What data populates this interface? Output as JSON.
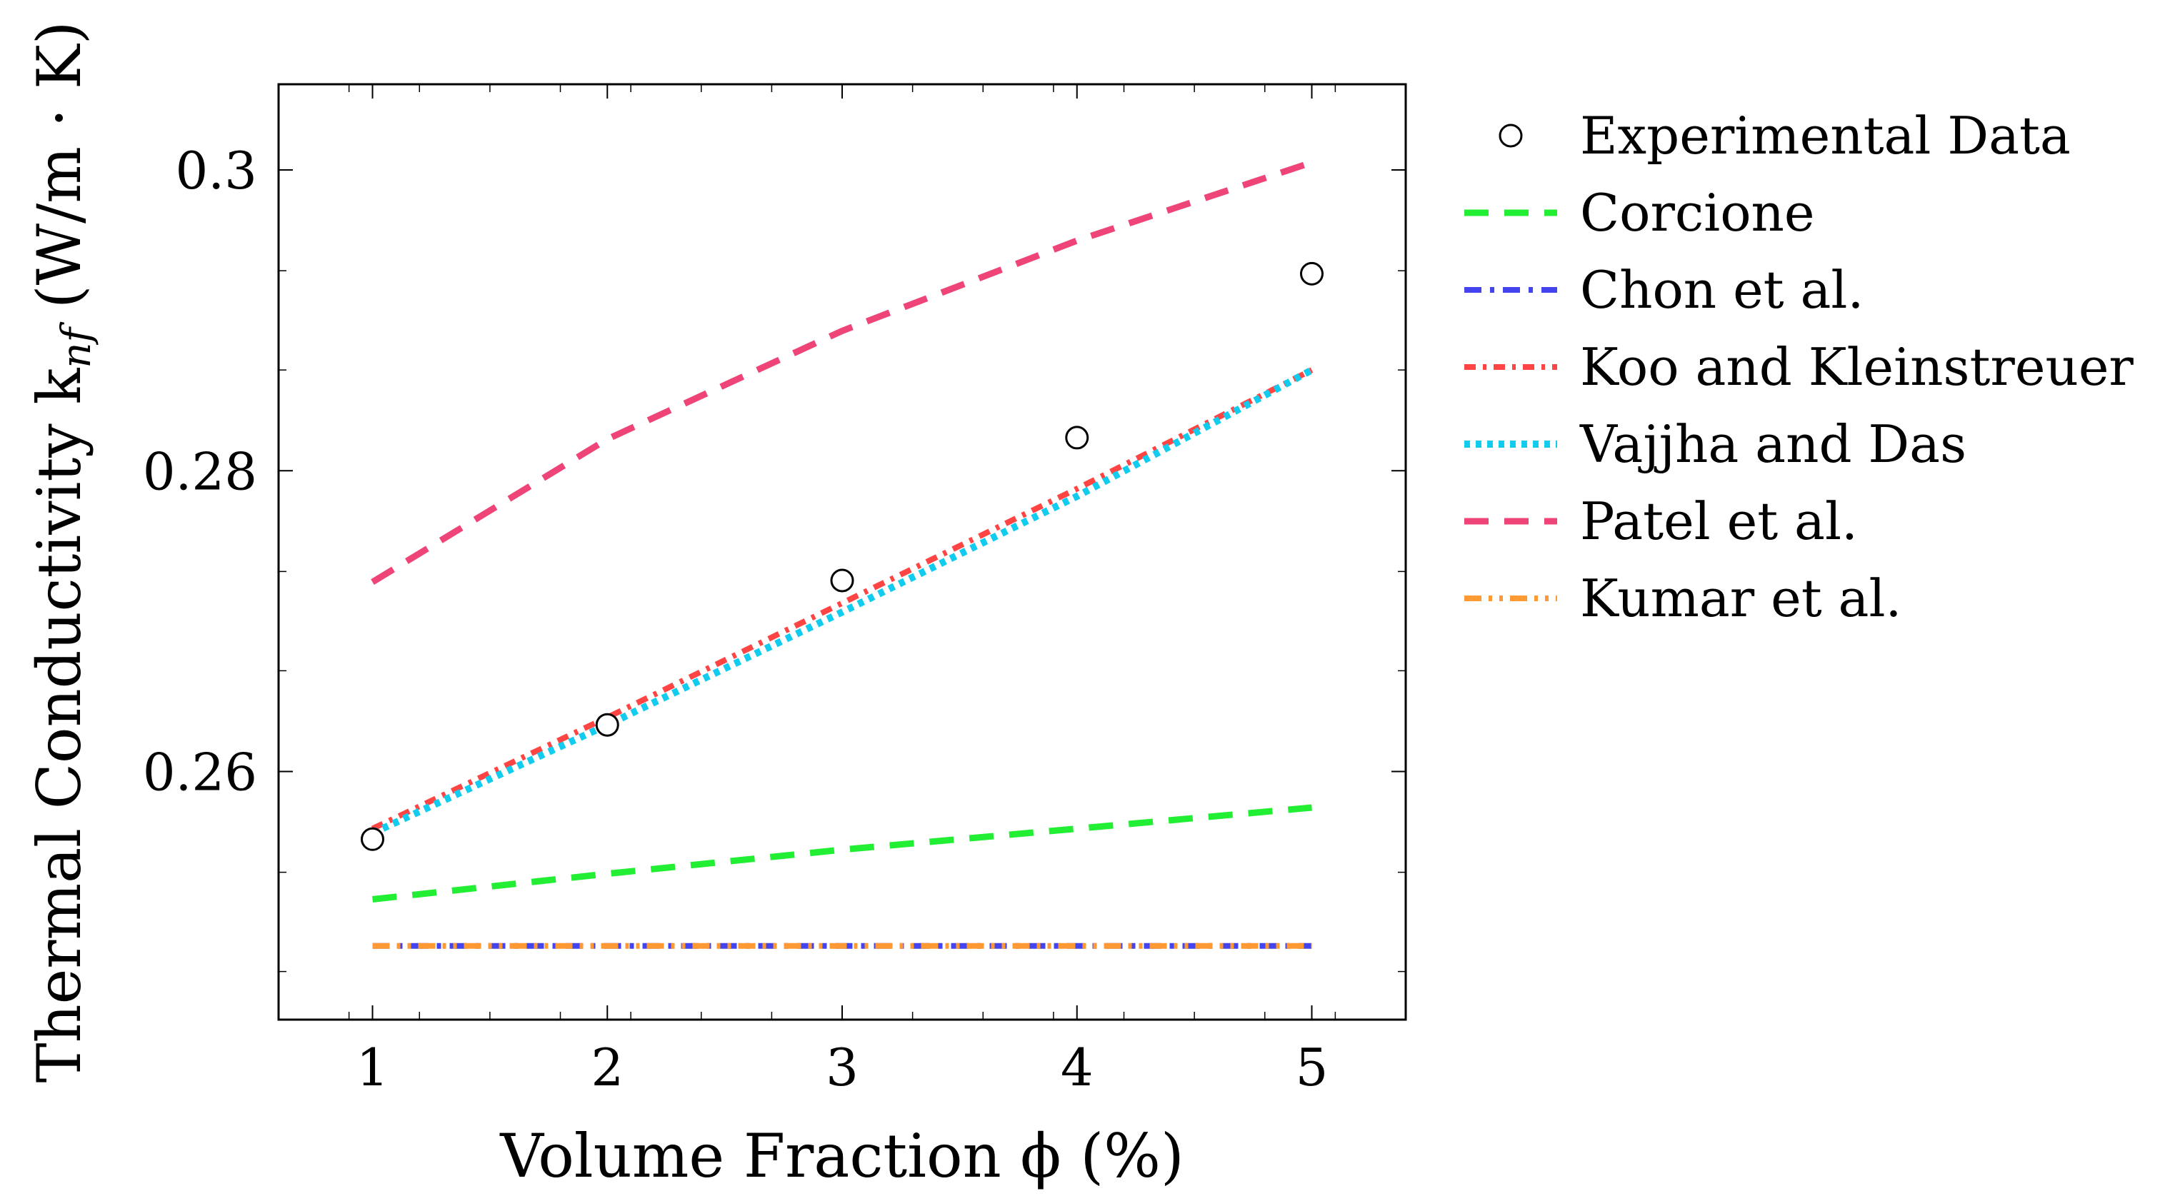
{
  "chart_data": {
    "type": "line",
    "title": "",
    "xlabel": "Volume Fraction ϕ (%)",
    "ylabel": "Thermal Conductivity k",
    "ylabel_sub": "nf",
    "ylabel_unit": " (W/m · K)",
    "xlim": [
      0.6,
      5.4
    ],
    "ylim": [
      0.2435,
      0.3057
    ],
    "xticks": [
      1,
      2,
      3,
      4,
      5
    ],
    "xtick_labels": [
      "1",
      "2",
      "3",
      "4",
      "5"
    ],
    "yticks": [
      0.26,
      0.28,
      0.3
    ],
    "ytick_labels": [
      "0.26",
      "0.28",
      "0.3"
    ],
    "grid": false,
    "legend_position": "outside-right",
    "series": [
      {
        "name": "Experimental Data",
        "kind": "marker",
        "color": "#000000",
        "x": [
          1,
          2,
          3,
          4,
          5
        ],
        "y": [
          0.2555,
          0.2631,
          0.2727,
          0.2822,
          0.2931
        ]
      },
      {
        "name": "Corcione",
        "kind": "line",
        "style": "dashed",
        "color": "#22ee33",
        "x": [
          1,
          2,
          3,
          4,
          5
        ],
        "y": [
          0.2515,
          0.2532,
          0.2548,
          0.2562,
          0.2576
        ]
      },
      {
        "name": "Chon et al.",
        "kind": "line",
        "style": "dashdot",
        "color": "#4444ee",
        "x": [
          1,
          2,
          3,
          4,
          5
        ],
        "y": [
          0.2484,
          0.2484,
          0.2484,
          0.2484,
          0.2484
        ]
      },
      {
        "name": "Koo and Kleinstreuer",
        "kind": "line",
        "style": "densely-dashdot",
        "color": "#ff4444",
        "x": [
          1,
          2,
          3,
          4,
          5
        ],
        "y": [
          0.2562,
          0.2636,
          0.2712,
          0.2788,
          0.2867
        ]
      },
      {
        "name": "Vajjha and Das",
        "kind": "line",
        "style": "dotted",
        "color": "#11ccee",
        "x": [
          1,
          2,
          3,
          4,
          5
        ],
        "y": [
          0.2559,
          0.2631,
          0.2706,
          0.2783,
          0.2867
        ]
      },
      {
        "name": "Patel et al.",
        "kind": "line",
        "style": "dashed",
        "color": "#ee4477",
        "x": [
          1,
          2,
          3,
          4,
          5
        ],
        "y": [
          0.2726,
          0.2821,
          0.2893,
          0.2953,
          0.3005
        ]
      },
      {
        "name": "Kumar et al.",
        "kind": "line",
        "style": "dashdotdot",
        "color": "#ff9933",
        "x": [
          1,
          2,
          3,
          4,
          5
        ],
        "y": [
          0.2484,
          0.2484,
          0.2484,
          0.2484,
          0.2484
        ]
      }
    ]
  }
}
